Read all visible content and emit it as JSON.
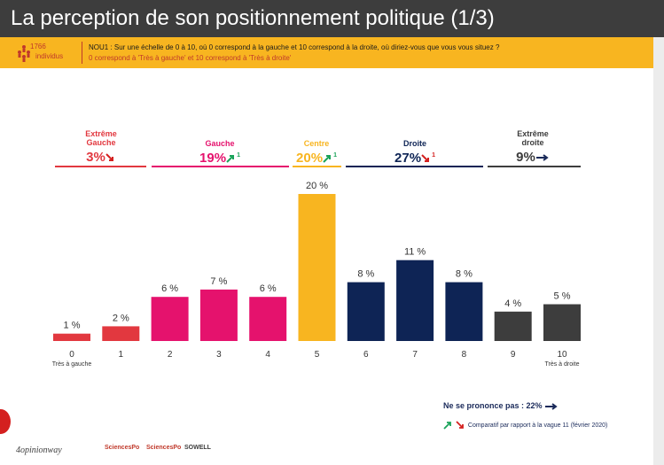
{
  "page": {
    "title": "La perception de son positionnement politique (1/3)"
  },
  "question": {
    "sample_count": "1766",
    "sample_unit": "individus",
    "text": "NOU1 : Sur une échelle de 0 à 10, où 0 correspond à la gauche et 10 correspond à la droite, où diriez-vous que vous vous situez ?",
    "note": "0 correspond à 'Très à gauche' et 10 correspond à 'Très à droite'"
  },
  "groups": [
    {
      "name": "Extrême\nGauche",
      "value": "3%",
      "trend": "down",
      "trend_label": "",
      "color": "#e2383f"
    },
    {
      "name": "Gauche",
      "value": "19%",
      "trend": "up",
      "trend_label": "1",
      "color": "#e5126d"
    },
    {
      "name": "Centre",
      "value": "20%",
      "trend": "up",
      "trend_label": "1",
      "color": "#f8b520"
    },
    {
      "name": "Droite",
      "value": "27%",
      "trend": "down",
      "trend_label": "1",
      "color": "#0e2455"
    },
    {
      "name": "Extrême\ndroite",
      "value": "9%",
      "trend": "flat",
      "trend_label": "",
      "color": "#3d3d3d"
    }
  ],
  "chart_data": {
    "type": "bar",
    "categories": [
      "0",
      "1",
      "2",
      "3",
      "4",
      "5",
      "6",
      "7",
      "8",
      "9",
      "10"
    ],
    "values": [
      1,
      2,
      6,
      7,
      6,
      20,
      8,
      11,
      8,
      4,
      5
    ],
    "value_labels": [
      "1 %",
      "2 %",
      "6 %",
      "7 %",
      "6 %",
      "20 %",
      "8 %",
      "11 %",
      "8 %",
      "4 %",
      "5 %"
    ],
    "bar_colors": [
      "#e2383f",
      "#e2383f",
      "#e5126d",
      "#e5126d",
      "#e5126d",
      "#f8b520",
      "#0e2455",
      "#0e2455",
      "#0e2455",
      "#3d3d3d",
      "#3d3d3d"
    ],
    "endpoint_labels": {
      "0": "Très à gauche",
      "10": "Très à droite"
    },
    "title": "",
    "xlabel": "",
    "ylabel": "",
    "ylim": [
      0,
      20
    ],
    "grid": false
  },
  "footer_notes": {
    "no_answer": "Ne se prononce pas : 22%",
    "comparison": "Comparatif par rapport à la vague 11 (février 2020)"
  },
  "logos": {
    "opinionway": "4opinionway",
    "sciencespo1": "SciencesPo",
    "sciencespo2": "SciencesPo",
    "sowell": "SOWELL"
  }
}
